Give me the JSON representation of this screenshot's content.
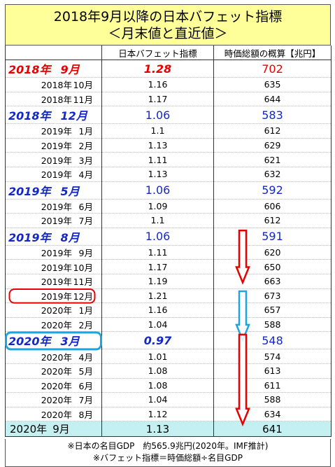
{
  "title": {
    "line1": "2018年9月以降の日本バフェット指標",
    "line2": "＜月末値と直近値＞"
  },
  "columns": [
    "",
    "日本バフェット指標",
    "時価総額の概算【兆円】"
  ],
  "rows": [
    {
      "year": "2018年",
      "month": "9月",
      "index": "1.28",
      "cap": "702",
      "style": "big red"
    },
    {
      "year": "2018年",
      "month": "10月",
      "index": "1.16",
      "cap": "635",
      "style": "normal"
    },
    {
      "year": "2018年",
      "month": "11月",
      "index": "1.17",
      "cap": "644",
      "style": "normal"
    },
    {
      "year": "2018年",
      "month": "12月",
      "index": "1.06",
      "cap": "583",
      "style": "big blue"
    },
    {
      "year": "2019年",
      "month": "1月",
      "index": "1.1",
      "cap": "612",
      "style": "normal"
    },
    {
      "year": "2019年",
      "month": "2月",
      "index": "1.13",
      "cap": "629",
      "style": "normal"
    },
    {
      "year": "2019年",
      "month": "3月",
      "index": "1.11",
      "cap": "621",
      "style": "normal"
    },
    {
      "year": "2019年",
      "month": "4月",
      "index": "1.13",
      "cap": "632",
      "style": "normal"
    },
    {
      "year": "2019年",
      "month": "5月",
      "index": "1.06",
      "cap": "592",
      "style": "big blue"
    },
    {
      "year": "2019年",
      "month": "6月",
      "index": "1.09",
      "cap": "606",
      "style": "normal"
    },
    {
      "year": "2019年",
      "month": "7月",
      "index": "1.1",
      "cap": "612",
      "style": "normal"
    },
    {
      "year": "2019年",
      "month": "8月",
      "index": "1.06",
      "cap": "591",
      "style": "big blue"
    },
    {
      "year": "2019年",
      "month": "9月",
      "index": "1.11",
      "cap": "620",
      "style": "normal"
    },
    {
      "year": "2019年",
      "month": "10月",
      "index": "1.17",
      "cap": "650",
      "style": "normal"
    },
    {
      "year": "2019年",
      "month": "11月",
      "index": "1.19",
      "cap": "663",
      "style": "normal"
    },
    {
      "year": "2019年",
      "month": "12月",
      "index": "1.21",
      "cap": "673",
      "style": "normal circled-red"
    },
    {
      "year": "2020年",
      "month": "1月",
      "index": "1.16",
      "cap": "657",
      "style": "normal"
    },
    {
      "year": "2020年",
      "month": "2月",
      "index": "1.04",
      "cap": "588",
      "style": "normal"
    },
    {
      "year": "2020年",
      "month": "3月",
      "index": "0.97",
      "cap": "548",
      "style": "big blue circled-cyan"
    },
    {
      "year": "2020年",
      "month": "4月",
      "index": "1.01",
      "cap": "574",
      "style": "normal"
    },
    {
      "year": "2020年",
      "month": "5月",
      "index": "1.08",
      "cap": "613",
      "style": "normal"
    },
    {
      "year": "2020年",
      "month": "6月",
      "index": "1.08",
      "cap": "611",
      "style": "normal"
    },
    {
      "year": "2020年",
      "month": "7月",
      "index": "1.04",
      "cap": "588",
      "style": "normal"
    },
    {
      "year": "2020年",
      "month": "8月",
      "index": "1.12",
      "cap": "634",
      "style": "normal"
    },
    {
      "year": "2020年",
      "month": "9月",
      "index": "1.13",
      "cap": "641",
      "style": "last"
    }
  ],
  "notes": [
    "※日本の名目GDP　約565.9兆円(2020年。IMF推計)",
    "※バフェット指標＝時価総額÷名目GDP"
  ],
  "colors": {
    "title_bg": "#ffff99",
    "red": "#e60000",
    "blue": "#1428c8",
    "highlight_cyan": "#1aa7e0",
    "last_row_bg": "#c4f0f2"
  },
  "annotations": [
    {
      "type": "arrow",
      "color": "red",
      "from_row": 11,
      "to_row": 14
    },
    {
      "type": "arrow",
      "color": "cyan",
      "from_row": 15,
      "to_row": 18
    },
    {
      "type": "arrow",
      "color": "red",
      "from_row": 18,
      "to_row": 24
    }
  ]
}
